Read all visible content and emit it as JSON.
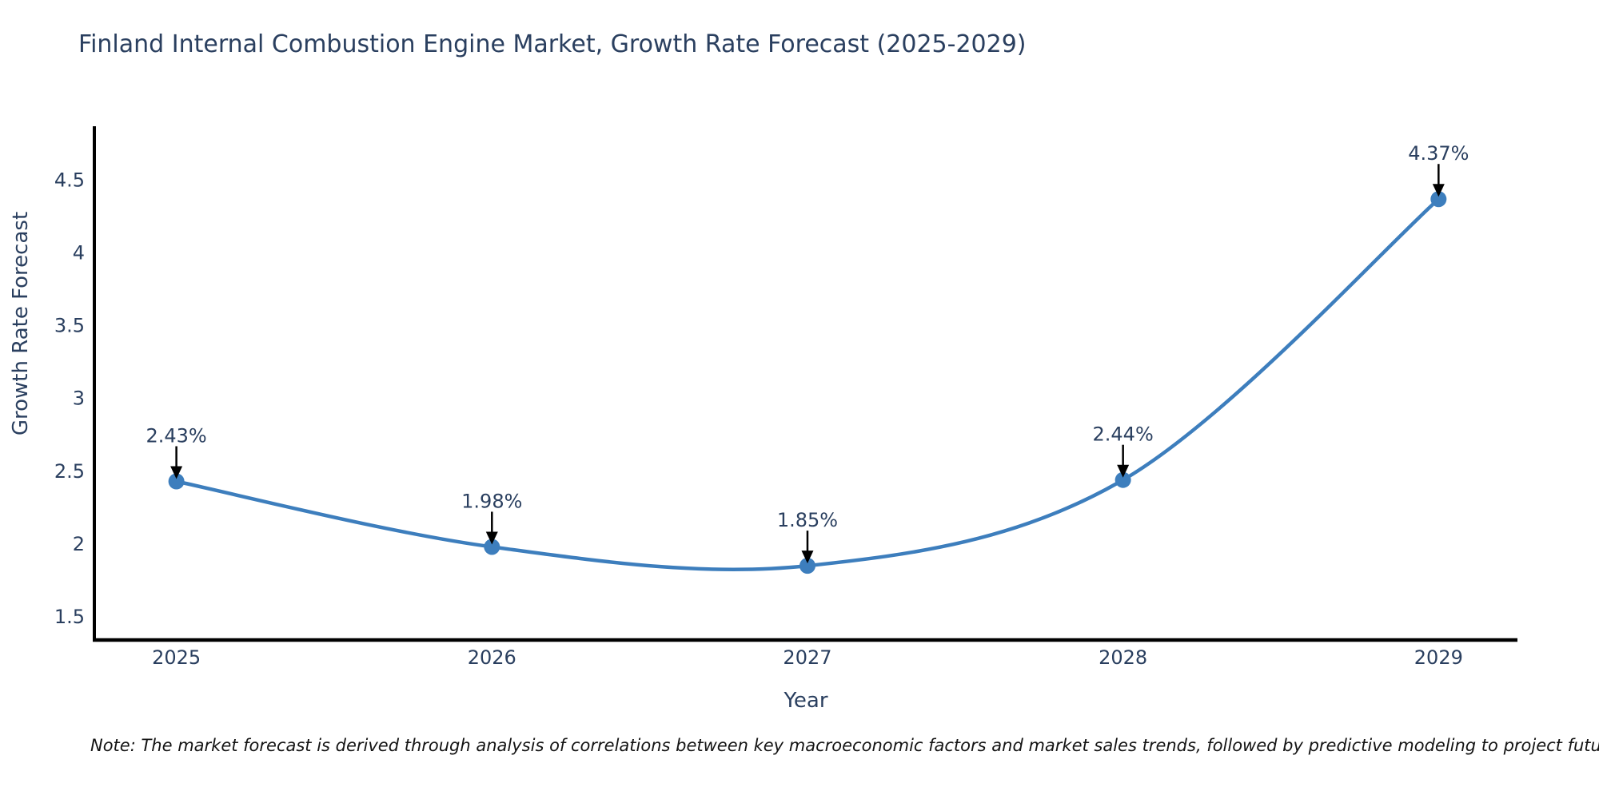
{
  "title": "Finland Internal Combustion Engine Market, Growth Rate Forecast (2025-2029)",
  "note": "Note: The market forecast is derived through analysis of correlations between key macroeconomic factors and market sales trends, followed by predictive modeling to project future sales",
  "colors": {
    "line": "#3d7ebd",
    "marker": "#3d7ebd",
    "text": "#2a3f5f",
    "spine": "#000000",
    "arrow": "#000000",
    "background": "#ffffff",
    "note_text": "#141414"
  },
  "chart_data": {
    "type": "line",
    "line_shape": "spline",
    "markers": true,
    "grid": false,
    "legend": "none",
    "title": "Finland Internal Combustion Engine Market, Growth Rate Forecast (2025-2029)",
    "xlabel": "Year",
    "ylabel": "Growth Rate Forecast",
    "x": [
      2025,
      2026,
      2027,
      2028,
      2029
    ],
    "categories": [
      "2025",
      "2026",
      "2027",
      "2028",
      "2029"
    ],
    "values": [
      2.43,
      1.98,
      1.85,
      2.44,
      4.37
    ],
    "point_labels": [
      "2.43%",
      "1.98%",
      "1.85%",
      "2.44%",
      "4.37%"
    ],
    "yticks": [
      1.5,
      2,
      2.5,
      3,
      3.5,
      4,
      4.5
    ],
    "ytick_labels": [
      "1.5",
      "2",
      "2.5",
      "3",
      "3.5",
      "4",
      "4.5"
    ],
    "ylim": [
      1.34,
      4.86
    ],
    "xlim": [
      2024.74,
      2029.25
    ]
  }
}
